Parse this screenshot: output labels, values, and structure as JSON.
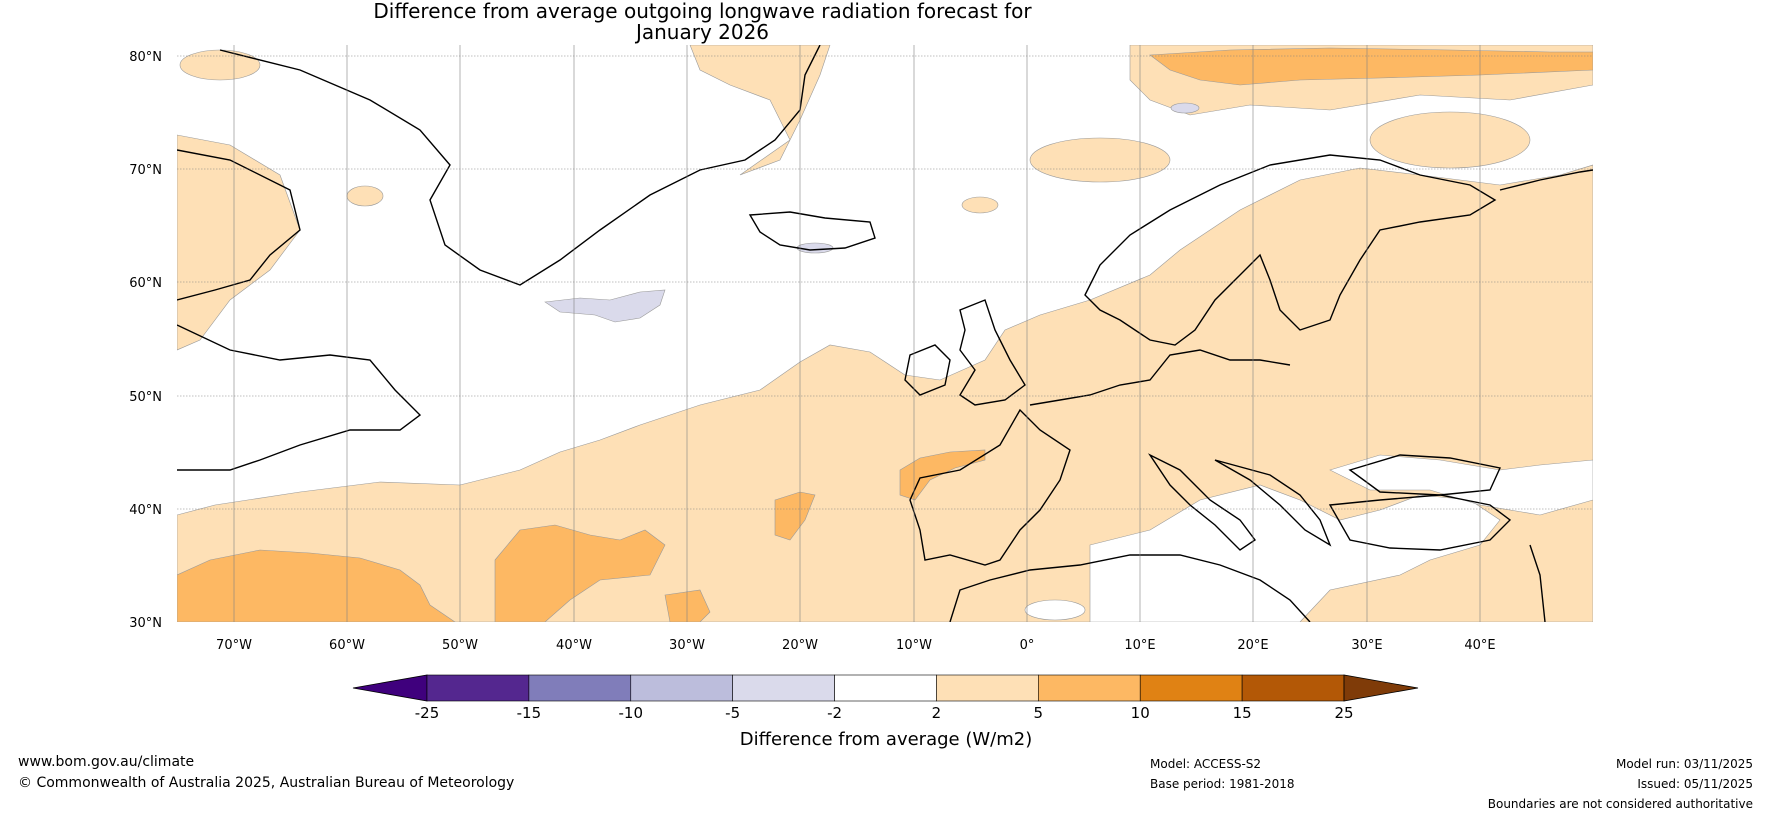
{
  "title": {
    "line1": "Difference from average outgoing longwave radiation forecast for",
    "line2": "January 2026"
  },
  "map": {
    "lat_labels": [
      "80°N",
      "70°N",
      "60°N",
      "50°N",
      "40°N",
      "30°N"
    ],
    "lon_labels": [
      "70°W",
      "60°W",
      "50°W",
      "40°W",
      "30°W",
      "20°W",
      "10°W",
      "0°",
      "10°E",
      "20°E",
      "30°E",
      "40°E"
    ]
  },
  "legend": {
    "title": "Difference from average (W/m2)",
    "ticks": [
      "-25",
      "-15",
      "-10",
      "-5",
      "-2",
      "2",
      "5",
      "10",
      "15",
      "25"
    ],
    "colors": [
      "#3f007d",
      "#54278f",
      "#807dba",
      "#bcbddc",
      "#dadaeb",
      "#ffffff",
      "#fee0b6",
      "#fdb863",
      "#e08214",
      "#b35806",
      "#7f3b08"
    ]
  },
  "footer": {
    "url": "www.bom.gov.au/climate",
    "copyright": "© Commonwealth of Australia 2025, Australian Bureau of Meteorology",
    "model": "Model: ACCESS-S2",
    "base_period": "Base period: 1981-2018",
    "model_run": "Model run: 03/11/2025",
    "issued": "Issued: 05/11/2025",
    "boundaries": "Boundaries are not considered authoritative"
  }
}
